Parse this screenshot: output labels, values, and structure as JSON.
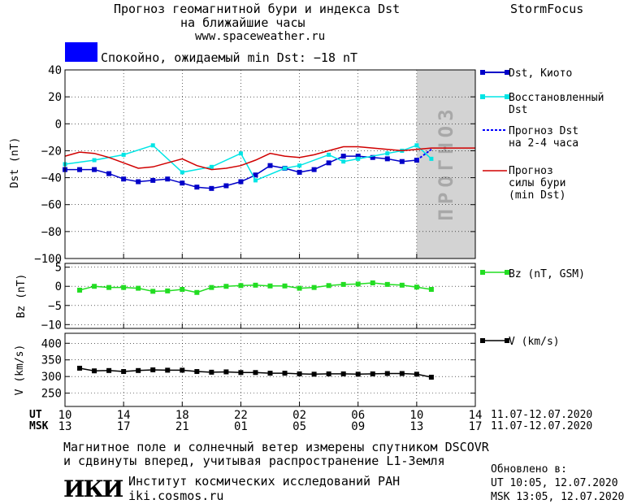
{
  "header": {
    "title_line1": "Прогноз геомагнитной бури и индекса Dst",
    "title_line2": "на ближайшие часы",
    "site": "www.spaceweather.ru",
    "brand": "StormFocus",
    "status_text": "Спокойно, ожидаемый min Dst: −18 nT",
    "status_color": "#0000ff"
  },
  "legend": {
    "dst_kyoto": "Dst, Киото",
    "restored_line1": "Восстановленный",
    "restored_line2": "Dst",
    "forecast_line1": "Прогноз Dst",
    "forecast_line2": "на 2-4 часа",
    "storm_line1": "Прогноз",
    "storm_line2": "силы бури",
    "storm_line3": "(min Dst)",
    "bz": "Bz (nT, GSM)",
    "v": "V (km/s)"
  },
  "forecast_band_label": "ПРОГНОЗ",
  "time_axis": {
    "ut_label": "UT",
    "msk_label": "MSK",
    "ut_ticks": [
      "10",
      "14",
      "18",
      "22",
      "02",
      "06",
      "10",
      "14"
    ],
    "msk_ticks": [
      "13",
      "17",
      "21",
      "01",
      "05",
      "09",
      "13",
      "17"
    ],
    "date_range_1": "11.07-12.07.2020",
    "date_range_2": "11.07-12.07.2020"
  },
  "footer": {
    "line1": "Магнитное поле и солнечный ветер измерены спутником DSCOVR",
    "line2": "и сдвинуты вперед, учитывая распространение L1-Земля",
    "logo": "ИКИ",
    "institute": "Институт космических исследований РАН",
    "institute_url": "iki.cosmos.ru",
    "updated_label": "Обновлено в:",
    "updated_ut": "UT   10:05, 12.07.2020",
    "updated_msk": "MSK 13:05, 12.07.2020"
  },
  "colors": {
    "dst": "#0000c8",
    "restored": "#00e5e5",
    "forecast": "#0000ff",
    "storm": "#d00000",
    "bz": "#22dd22",
    "v": "#000000",
    "band": "#d3d3d3"
  },
  "chart_data": [
    {
      "type": "line",
      "ylabel": "Dst (nT)",
      "xlim": [
        10,
        38
      ],
      "ylim": [
        -100,
        40
      ],
      "yticks": [
        40,
        20,
        0,
        -20,
        -40,
        -60,
        -80,
        -100
      ],
      "forecast_band": [
        34,
        38
      ],
      "series": [
        {
          "name": "Dst, Киото",
          "x": [
            10,
            11,
            12,
            13,
            14,
            15,
            16,
            17,
            18,
            19,
            20,
            21,
            22,
            23,
            24,
            25,
            26,
            27,
            28,
            29,
            30,
            31,
            32,
            33,
            34
          ],
          "values": [
            -34,
            -34,
            -34,
            -37,
            -41,
            -43,
            -42,
            -41,
            -44,
            -47,
            -48,
            -46,
            -43,
            -38,
            -31,
            -33,
            -36,
            -34,
            -29,
            -24,
            -24,
            -25,
            -26,
            -28,
            -27
          ]
        },
        {
          "name": "Восстановленный Dst",
          "x": [
            10,
            12,
            14,
            16,
            18,
            20,
            22,
            23,
            25,
            26,
            28,
            29,
            30,
            32,
            33,
            34,
            35
          ],
          "values": [
            -30,
            -27,
            -23,
            -16,
            -36,
            -32,
            -22,
            -42,
            -33,
            -31,
            -23,
            -28,
            -26,
            -22,
            -20,
            -16,
            -26
          ]
        },
        {
          "name": "Прогноз Dst на 2-4 часа",
          "x": [
            34,
            35
          ],
          "values": [
            -27,
            -19
          ]
        },
        {
          "name": "Прогноз силы бури (min Dst)",
          "x": [
            10,
            11,
            12,
            13,
            14,
            15,
            16,
            17,
            18,
            19,
            20,
            21,
            22,
            23,
            24,
            25,
            26,
            27,
            28,
            29,
            30,
            31,
            32,
            33,
            34,
            35,
            36,
            37,
            38
          ],
          "values": [
            -24,
            -21,
            -22,
            -25,
            -29,
            -33,
            -32,
            -29,
            -26,
            -31,
            -34,
            -33,
            -31,
            -27,
            -22,
            -24,
            -25,
            -23,
            -20,
            -17,
            -17,
            -18,
            -19,
            -20,
            -19,
            -18,
            -18,
            -18,
            -18
          ]
        }
      ]
    },
    {
      "type": "line",
      "ylabel": "Bz (nT)",
      "xlim": [
        10,
        38
      ],
      "ylim": [
        -11,
        6
      ],
      "yticks": [
        5,
        0,
        -5,
        -10
      ],
      "series": [
        {
          "name": "Bz (nT, GSM)",
          "x": [
            11,
            12,
            13,
            14,
            15,
            16,
            17,
            18,
            19,
            20,
            21,
            22,
            23,
            24,
            25,
            26,
            27,
            28,
            29,
            30,
            31,
            32,
            33,
            34,
            35
          ],
          "values": [
            -1,
            0,
            -0.3,
            -0.3,
            -0.5,
            -1.3,
            -1.2,
            -0.8,
            -1.6,
            -0.3,
            0,
            0.2,
            0.3,
            0.1,
            0.1,
            -0.5,
            -0.3,
            0.2,
            0.5,
            0.6,
            0.9,
            0.5,
            0.3,
            -0.2,
            -0.8
          ]
        }
      ]
    },
    {
      "type": "line",
      "ylabel": "V (km/s)",
      "xlim": [
        10,
        38
      ],
      "ylim": [
        210,
        430
      ],
      "yticks": [
        400,
        350,
        300,
        250
      ],
      "series": [
        {
          "name": "V (km/s)",
          "x": [
            11,
            12,
            13,
            14,
            15,
            16,
            17,
            18,
            19,
            20,
            21,
            22,
            23,
            24,
            25,
            26,
            27,
            28,
            29,
            30,
            31,
            32,
            33,
            34,
            35
          ],
          "values": [
            325,
            317,
            318,
            315,
            318,
            320,
            319,
            319,
            315,
            313,
            314,
            312,
            312,
            310,
            310,
            308,
            307,
            308,
            308,
            307,
            308,
            309,
            309,
            307,
            298
          ]
        }
      ]
    }
  ]
}
